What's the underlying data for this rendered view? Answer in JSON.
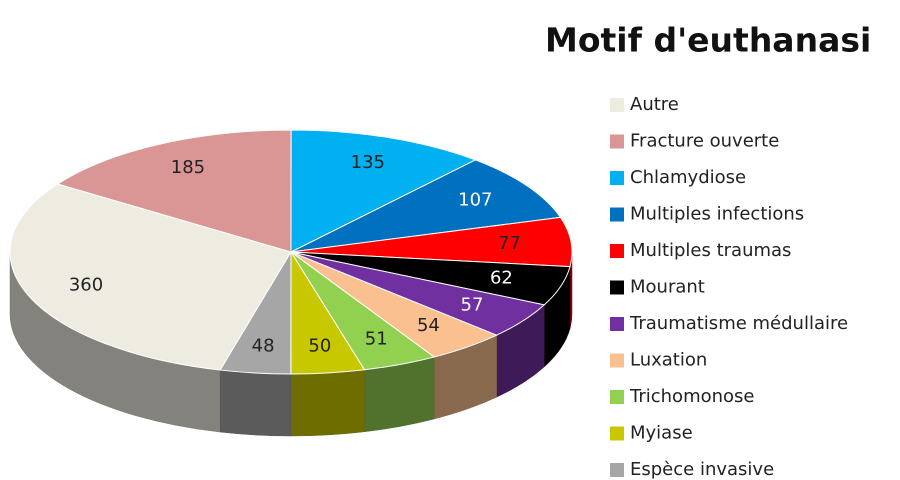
{
  "chart_data": {
    "type": "pie",
    "title": "Motif d'euthanasi",
    "categories": [
      "Autre",
      "Fracture ouverte",
      "Chlamydiose",
      "Multiples infections",
      "Multiples traumas",
      "Mourant",
      "Traumatisme médullaire",
      "Luxation",
      "Trichomonose",
      "Myiase",
      "Espèce invasive"
    ],
    "values": [
      360,
      185,
      135,
      107,
      77,
      62,
      57,
      54,
      51,
      50,
      48
    ],
    "colors": [
      "#eeece1",
      "#d99694",
      "#00b0f0",
      "#0070c0",
      "#ff0000",
      "#000000",
      "#7030a0",
      "#fac090",
      "#92d050",
      "#c8c800",
      "#a6a6a6"
    ]
  }
}
